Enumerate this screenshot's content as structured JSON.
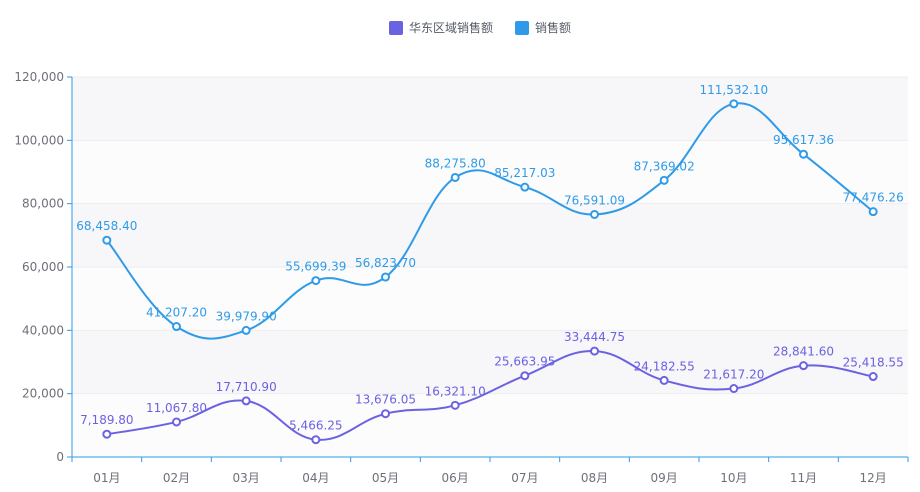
{
  "chart_data": {
    "type": "line",
    "title": "",
    "xlabel": "",
    "ylabel": "",
    "categories": [
      "01月",
      "02月",
      "03月",
      "04月",
      "05月",
      "06月",
      "07月",
      "08月",
      "09月",
      "10月",
      "11月",
      "12月"
    ],
    "ylim": [
      0,
      120000
    ],
    "yticks": [
      0,
      20000,
      40000,
      60000,
      80000,
      100000,
      120000
    ],
    "ytick_labels": [
      "0",
      "20,000",
      "40,000",
      "60,000",
      "80,000",
      "100,000",
      "120,000"
    ],
    "grid": true,
    "grid_style": "alternating horizontal bands",
    "legend_position": "top",
    "smooth": true,
    "series": [
      {
        "name": "华东区域销售额",
        "color": "#6b62e2",
        "values": [
          7189.8,
          11067.8,
          17710.9,
          5466.25,
          13676.05,
          16321.1,
          25663.95,
          33444.75,
          24182.55,
          21617.2,
          28841.6,
          25418.55
        ],
        "labels": [
          "7,189.80",
          "11,067.80",
          "17,710.90",
          "5,466.25",
          "13,676.05",
          "16,321.10",
          "25,663.95",
          "33,444.75",
          "24,182.55",
          "21,617.20",
          "28,841.60",
          "25,418.55"
        ]
      },
      {
        "name": "销售额",
        "color": "#2f9be8",
        "values": [
          68458.4,
          41207.2,
          39979.9,
          55699.39,
          56823.7,
          88275.8,
          85217.03,
          76591.09,
          87369.02,
          111532.1,
          95617.36,
          77476.26
        ],
        "labels": [
          "68,458.40",
          "41,207.20",
          "39,979.90",
          "55,699.39",
          "56,823.70",
          "88,275.80",
          "85,217.03",
          "76,591.09",
          "87,369.02",
          "111,532.10",
          "95,617.36",
          "77,476.26"
        ]
      }
    ]
  }
}
